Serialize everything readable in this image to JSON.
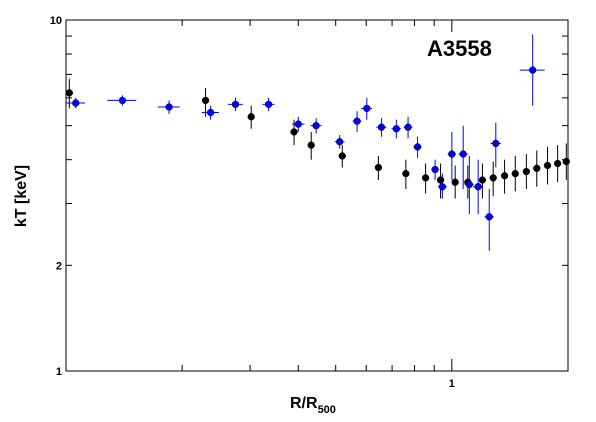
{
  "chart_data": {
    "type": "scatter",
    "title": "",
    "annotation": "A3558",
    "xlabel": "R/R",
    "xlabel_sub": "500",
    "ylabel": "kT [keV]",
    "xscale": "log",
    "yscale": "log",
    "xlim": [
      0.1,
      2.0
    ],
    "ylim": [
      1,
      10
    ],
    "ytick_labels": [
      {
        "value": 10,
        "label": "10"
      },
      {
        "value": 2,
        "label": "2"
      },
      {
        "value": 1,
        "label": "1"
      }
    ],
    "xtick_labels": [
      {
        "value": 1,
        "label": "1"
      }
    ],
    "grid": false,
    "series": [
      {
        "color": "#000000",
        "points": [
          {
            "x": 0.102,
            "y": 6.2,
            "xerr": 0.002,
            "ylo": 5.6,
            "yhi": 6.8
          },
          {
            "x": 0.23,
            "y": 5.9,
            "xerr": 0.0,
            "ylo": 5.3,
            "yhi": 6.4
          },
          {
            "x": 0.302,
            "y": 5.3,
            "xerr": 0.0,
            "ylo": 4.9,
            "yhi": 5.7
          },
          {
            "x": 0.39,
            "y": 4.8,
            "xerr": 0.0,
            "ylo": 4.4,
            "yhi": 5.2
          },
          {
            "x": 0.432,
            "y": 4.4,
            "xerr": 0.0,
            "ylo": 4.0,
            "yhi": 4.8
          },
          {
            "x": 0.52,
            "y": 4.1,
            "xerr": 0.0,
            "ylo": 3.8,
            "yhi": 4.4
          },
          {
            "x": 0.645,
            "y": 3.8,
            "xerr": 0.0,
            "ylo": 3.5,
            "yhi": 4.1
          },
          {
            "x": 0.76,
            "y": 3.65,
            "xerr": 0.0,
            "ylo": 3.3,
            "yhi": 4.0
          },
          {
            "x": 0.855,
            "y": 3.55,
            "xerr": 0.0,
            "ylo": 3.2,
            "yhi": 3.9
          },
          {
            "x": 0.935,
            "y": 3.5,
            "xerr": 0.0,
            "ylo": 3.1,
            "yhi": 3.9
          },
          {
            "x": 1.02,
            "y": 3.45,
            "xerr": 0.0,
            "ylo": 3.1,
            "yhi": 3.85
          },
          {
            "x": 1.1,
            "y": 3.45,
            "xerr": 0.0,
            "ylo": 3.1,
            "yhi": 3.85
          },
          {
            "x": 1.2,
            "y": 3.5,
            "xerr": 0.0,
            "ylo": 3.1,
            "yhi": 3.9
          },
          {
            "x": 1.28,
            "y": 3.55,
            "xerr": 0.0,
            "ylo": 3.15,
            "yhi": 3.95
          },
          {
            "x": 1.37,
            "y": 3.6,
            "xerr": 0.0,
            "ylo": 3.2,
            "yhi": 4.0
          },
          {
            "x": 1.46,
            "y": 3.65,
            "xerr": 0.0,
            "ylo": 3.25,
            "yhi": 4.1
          },
          {
            "x": 1.56,
            "y": 3.7,
            "xerr": 0.0,
            "ylo": 3.3,
            "yhi": 4.15
          },
          {
            "x": 1.66,
            "y": 3.78,
            "xerr": 0.0,
            "ylo": 3.35,
            "yhi": 4.25
          },
          {
            "x": 1.77,
            "y": 3.85,
            "xerr": 0.0,
            "ylo": 3.4,
            "yhi": 4.35
          },
          {
            "x": 1.88,
            "y": 3.9,
            "xerr": 0.0,
            "ylo": 3.45,
            "yhi": 4.4
          },
          {
            "x": 1.98,
            "y": 3.95,
            "xerr": 0.0,
            "ylo": 3.5,
            "yhi": 4.45
          }
        ]
      },
      {
        "color": "#0000ff",
        "points": [
          {
            "x": 0.106,
            "y": 5.8,
            "xerr": 0.006,
            "ylo": 5.6,
            "yhi": 6.0
          },
          {
            "x": 0.14,
            "y": 5.9,
            "xerr": 0.012,
            "ylo": 5.7,
            "yhi": 6.1
          },
          {
            "x": 0.185,
            "y": 5.65,
            "xerr": 0.012,
            "ylo": 5.4,
            "yhi": 5.9
          },
          {
            "x": 0.237,
            "y": 5.45,
            "xerr": 0.012,
            "ylo": 5.2,
            "yhi": 5.7
          },
          {
            "x": 0.275,
            "y": 5.75,
            "xerr": 0.012,
            "ylo": 5.5,
            "yhi": 6.0
          },
          {
            "x": 0.335,
            "y": 5.75,
            "xerr": 0.012,
            "ylo": 5.5,
            "yhi": 6.0
          },
          {
            "x": 0.4,
            "y": 5.05,
            "xerr": 0.015,
            "ylo": 4.8,
            "yhi": 5.3
          },
          {
            "x": 0.445,
            "y": 5.0,
            "xerr": 0.015,
            "ylo": 4.75,
            "yhi": 5.25
          },
          {
            "x": 0.512,
            "y": 4.5,
            "xerr": 0.015,
            "ylo": 4.3,
            "yhi": 4.7
          },
          {
            "x": 0.568,
            "y": 5.15,
            "xerr": 0.015,
            "ylo": 4.8,
            "yhi": 5.5
          },
          {
            "x": 0.602,
            "y": 5.6,
            "xerr": 0.02,
            "ylo": 5.2,
            "yhi": 6.0
          },
          {
            "x": 0.657,
            "y": 4.95,
            "xerr": 0.02,
            "ylo": 4.65,
            "yhi": 5.25
          },
          {
            "x": 0.718,
            "y": 4.9,
            "xerr": 0.02,
            "ylo": 4.6,
            "yhi": 5.2
          },
          {
            "x": 0.77,
            "y": 4.95,
            "xerr": 0.02,
            "ylo": 4.6,
            "yhi": 5.3
          },
          {
            "x": 0.815,
            "y": 4.35,
            "xerr": 0.02,
            "ylo": 4.05,
            "yhi": 4.65
          },
          {
            "x": 0.905,
            "y": 3.75,
            "xerr": 0.02,
            "ylo": 3.5,
            "yhi": 4.0
          },
          {
            "x": 0.945,
            "y": 3.35,
            "xerr": 0.025,
            "ylo": 3.1,
            "yhi": 3.65
          },
          {
            "x": 1.0,
            "y": 4.15,
            "xerr": 0.025,
            "ylo": 3.5,
            "yhi": 4.8
          },
          {
            "x": 1.07,
            "y": 4.15,
            "xerr": 0.03,
            "ylo": 3.3,
            "yhi": 5.0
          },
          {
            "x": 1.11,
            "y": 3.4,
            "xerr": 0.03,
            "ylo": 2.8,
            "yhi": 4.1
          },
          {
            "x": 1.17,
            "y": 3.35,
            "xerr": 0.035,
            "ylo": 2.8,
            "yhi": 4.0
          },
          {
            "x": 1.25,
            "y": 2.75,
            "xerr": 0.035,
            "ylo": 2.2,
            "yhi": 3.3
          },
          {
            "x": 1.3,
            "y": 4.45,
            "xerr": 0.04,
            "ylo": 3.8,
            "yhi": 5.1
          },
          {
            "x": 1.62,
            "y": 7.2,
            "xerr": 0.12,
            "ylo": 5.7,
            "yhi": 9.1
          }
        ]
      }
    ]
  }
}
